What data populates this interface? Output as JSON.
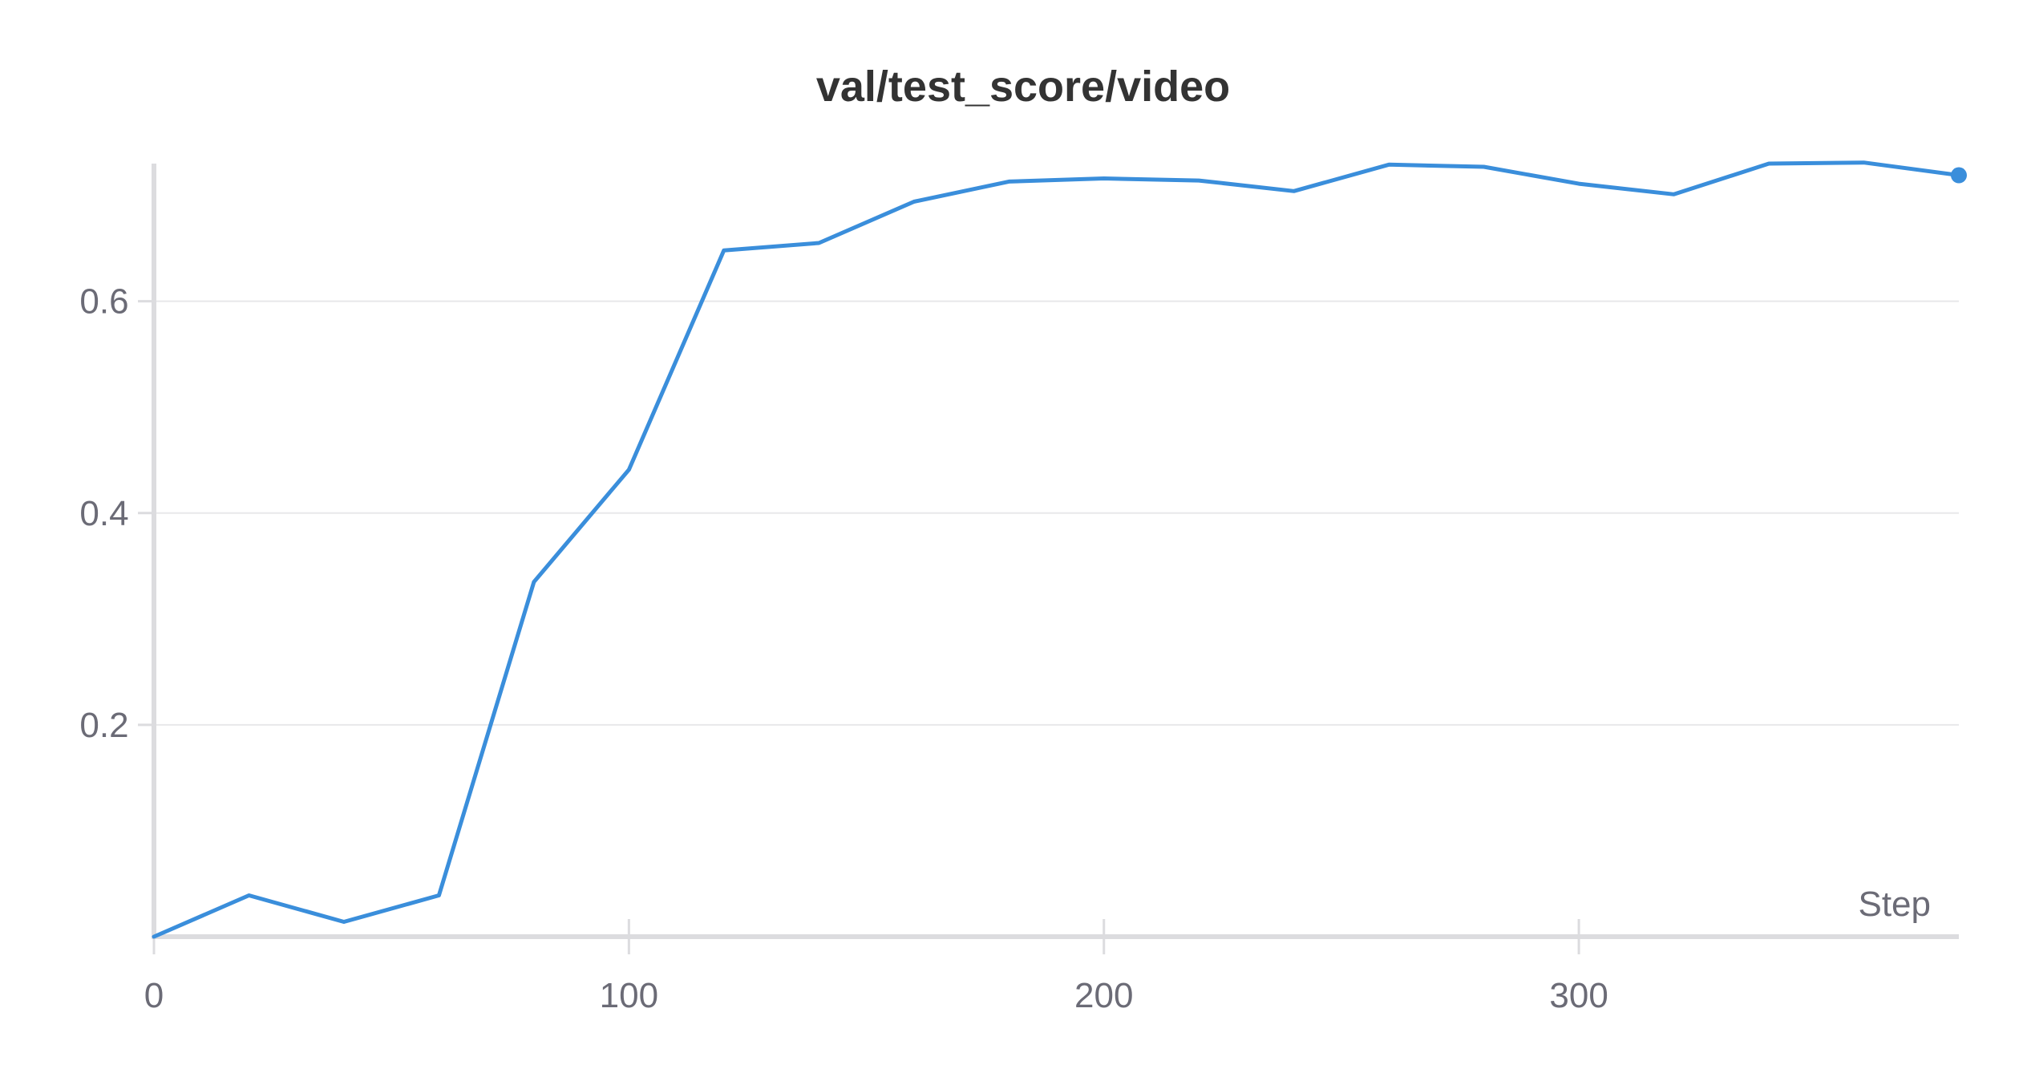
{
  "chart_data": {
    "type": "line",
    "title": "val/test_score/video",
    "xlabel": "Step",
    "ylabel": "",
    "xlim": [
      0,
      380
    ],
    "ylim": [
      0,
      0.73
    ],
    "x_ticks": [
      0,
      100,
      200,
      300
    ],
    "x_tick_labels": [
      "0",
      "100",
      "200",
      "300"
    ],
    "y_ticks": [
      0.2,
      0.4,
      0.6
    ],
    "y_tick_labels": [
      "0.2",
      "0.4",
      "0.6"
    ],
    "grid": true,
    "line_color": "#3a8edb",
    "series": [
      {
        "x": [
          0,
          20,
          40,
          60,
          80,
          100,
          120,
          140,
          160,
          180,
          200,
          220,
          240,
          260,
          280,
          300,
          320,
          340,
          360,
          380
        ],
        "values": [
          0.0,
          0.039,
          0.014,
          0.039,
          0.335,
          0.441,
          0.648,
          0.655,
          0.694,
          0.713,
          0.716,
          0.714,
          0.704,
          0.729,
          0.727,
          0.711,
          0.701,
          0.73,
          0.731,
          0.719
        ]
      }
    ]
  }
}
